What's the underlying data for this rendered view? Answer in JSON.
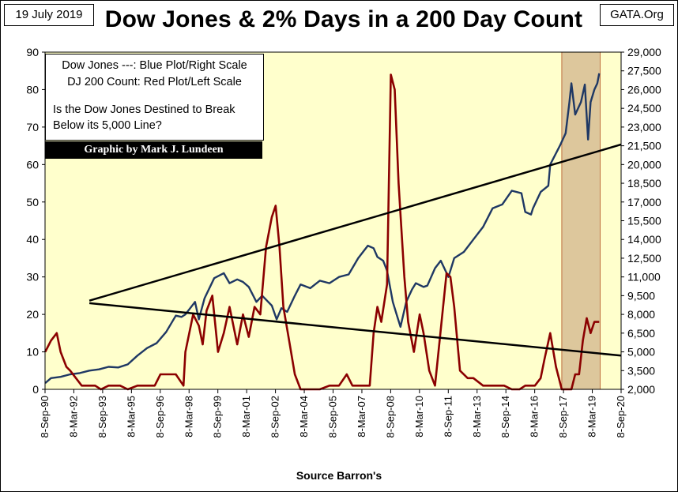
{
  "header": {
    "date": "19 July 2019",
    "title": "Dow Jones & 2% Days in a 200 Day Count",
    "source": "GATA.Org"
  },
  "legend": {
    "line1": "Dow Jones ---: Blue Plot/Right Scale",
    "line2": "DJ 200 Count: Red Plot/Left Scale",
    "question1": "Is the Dow Jones Destined to Break",
    "question2": "Below its 5,000 Line?",
    "credit": "Graphic by Mark J. Lundeen"
  },
  "chart_data": {
    "type": "line",
    "title": "Dow Jones & 2% Days in a 200 Day Count",
    "xlabel": "Source Barron's",
    "x_ticks": [
      "8-Sep-90",
      "8-Mar-92",
      "8-Sep-93",
      "8-Mar-95",
      "8-Sep-96",
      "8-Mar-98",
      "8-Sep-99",
      "8-Mar-01",
      "8-Sep-02",
      "8-Mar-04",
      "8-Sep-05",
      "8-Mar-07",
      "8-Sep-08",
      "8-Mar-10",
      "8-Sep-11",
      "8-Mar-13",
      "8-Sep-14",
      "8-Mar-16",
      "8-Sep-17",
      "8-Mar-19",
      "8-Sep-20"
    ],
    "xlim": [
      1990.69,
      2020.69
    ],
    "y_left": {
      "ticks": [
        "0",
        "10",
        "20",
        "30",
        "40",
        "50",
        "60",
        "70",
        "80",
        "90"
      ],
      "lim": [
        0,
        90
      ]
    },
    "y_right": {
      "ticks": [
        "2,000",
        "3,500",
        "5,000",
        "6,500",
        "8,000",
        "9,500",
        "11,000",
        "12,500",
        "14,000",
        "15,500",
        "17,000",
        "18,500",
        "20,000",
        "21,500",
        "23,000",
        "24,500",
        "26,000",
        "27,500",
        "29,000"
      ],
      "lim": [
        2000,
        29000
      ]
    },
    "background_color": "#FFFFCC",
    "highlight_color": "#D2B48C",
    "highlight_range": [
      2017.6,
      2019.6
    ],
    "series": [
      {
        "axis": "right",
        "color": "#1F3864",
        "x": [
          1990.7,
          1991.0,
          1991.5,
          1992.0,
          1992.5,
          1993.0,
          1993.5,
          1994.0,
          1994.5,
          1995.0,
          1995.5,
          1996.0,
          1996.5,
          1997.0,
          1997.5,
          1997.8,
          1998.0,
          1998.5,
          1998.7,
          1999.0,
          1999.5,
          2000.0,
          2000.3,
          2000.7,
          2001.0,
          2001.3,
          2001.7,
          2002.0,
          2002.5,
          2002.75,
          2003.0,
          2003.3,
          2003.7,
          2004.0,
          2004.5,
          2005.0,
          2005.5,
          2006.0,
          2006.5,
          2007.0,
          2007.5,
          2007.8,
          2008.0,
          2008.3,
          2008.5,
          2008.8,
          2009.0,
          2009.2,
          2009.5,
          2009.8,
          2010.0,
          2010.4,
          2010.6,
          2011.0,
          2011.3,
          2011.7,
          2012.0,
          2012.5,
          2013.0,
          2013.5,
          2014.0,
          2014.5,
          2015.0,
          2015.5,
          2015.7,
          2016.0,
          2016.1,
          2016.5,
          2016.9,
          2017.0,
          2017.5,
          2017.8,
          2018.0,
          2018.1,
          2018.3,
          2018.6,
          2018.8,
          2018.97,
          2019.1,
          2019.3,
          2019.45,
          2019.55
        ],
        "y": [
          2500,
          2900,
          3000,
          3200,
          3300,
          3500,
          3600,
          3800,
          3750,
          4000,
          4700,
          5300,
          5700,
          6600,
          7900,
          7800,
          8000,
          9000,
          7600,
          9300,
          10900,
          11300,
          10500,
          10800,
          10600,
          10200,
          9000,
          9500,
          8700,
          7600,
          8500,
          8200,
          9500,
          10400,
          10100,
          10700,
          10500,
          11000,
          11200,
          12500,
          13500,
          13300,
          12600,
          12300,
          11500,
          9000,
          8000,
          7000,
          9000,
          10000,
          10500,
          10200,
          10300,
          11700,
          12300,
          11000,
          12500,
          13000,
          14000,
          15000,
          16500,
          16800,
          17900,
          17700,
          16200,
          16000,
          16500,
          17800,
          18300,
          20000,
          21500,
          22500,
          25000,
          26500,
          24000,
          25000,
          26400,
          22000,
          25000,
          26000,
          26500,
          27300
        ]
      },
      {
        "axis": "left",
        "color": "#8B0000",
        "x": [
          1990.7,
          1991.0,
          1991.3,
          1991.5,
          1991.8,
          1992.0,
          1992.3,
          1992.6,
          1993.0,
          1993.3,
          1993.6,
          1994.0,
          1994.3,
          1994.6,
          1995.0,
          1995.5,
          1996.0,
          1996.4,
          1996.7,
          1997.0,
          1997.5,
          1997.9,
          1998.0,
          1998.4,
          1998.7,
          1998.9,
          1999.1,
          1999.4,
          1999.7,
          2000.0,
          2000.3,
          2000.7,
          2001.0,
          2001.3,
          2001.6,
          2001.9,
          2002.2,
          2002.5,
          2002.7,
          2002.9,
          2003.1,
          2003.4,
          2003.7,
          2004.0,
          2004.5,
          2005.0,
          2005.5,
          2006.0,
          2006.4,
          2006.7,
          2007.0,
          2007.3,
          2007.6,
          2007.8,
          2008.0,
          2008.2,
          2008.5,
          2008.7,
          2008.9,
          2009.1,
          2009.4,
          2009.6,
          2009.9,
          2010.2,
          2010.4,
          2010.7,
          2011.0,
          2011.3,
          2011.6,
          2011.8,
          2012.0,
          2012.3,
          2012.7,
          2013.0,
          2013.5,
          2014.0,
          2014.3,
          2014.6,
          2015.0,
          2015.4,
          2015.7,
          2015.9,
          2016.2,
          2016.5,
          2016.7,
          2017.0,
          2017.3,
          2017.6,
          2018.0,
          2018.1,
          2018.3,
          2018.5,
          2018.7,
          2018.9,
          2019.1,
          2019.3,
          2019.55
        ],
        "y": [
          10,
          13,
          15,
          10,
          6,
          5,
          3,
          1,
          1,
          1,
          0,
          1,
          1,
          1,
          0,
          1,
          1,
          1,
          4,
          4,
          4,
          1,
          10,
          20,
          17,
          12,
          21,
          25,
          10,
          15,
          22,
          12,
          20,
          14,
          22,
          20,
          38,
          46,
          49,
          38,
          22,
          13,
          4,
          0,
          0,
          0,
          1,
          1,
          4,
          1,
          1,
          1,
          1,
          15,
          22,
          18,
          28,
          84,
          80,
          55,
          30,
          18,
          10,
          20,
          15,
          5,
          1,
          16,
          31,
          30,
          22,
          5,
          3,
          3,
          1,
          1,
          1,
          1,
          0,
          0,
          1,
          1,
          1,
          3,
          8,
          15,
          6,
          0,
          0,
          0,
          4,
          4,
          13,
          19,
          15,
          18,
          18
        ]
      },
      {
        "axis": "right",
        "color": "#000000",
        "label": "trend-upper",
        "x": [
          1993.0,
          2020.69
        ],
        "y": [
          9100,
          21600
        ]
      },
      {
        "axis": "right",
        "color": "#000000",
        "label": "trend-lower",
        "x": [
          1993.0,
          2020.69
        ],
        "y": [
          8900,
          4700
        ]
      }
    ]
  }
}
